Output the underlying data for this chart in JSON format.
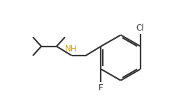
{
  "bg_color": "#ffffff",
  "bond_color": "#383838",
  "nh_color": "#d4a000",
  "cl_color": "#383838",
  "f_color": "#383838",
  "bond_lw": 1.6,
  "figsize": [
    2.46,
    1.54
  ],
  "dpi": 100,
  "xlim": [
    0.0,
    9.5
  ],
  "ylim": [
    0.5,
    6.8
  ]
}
